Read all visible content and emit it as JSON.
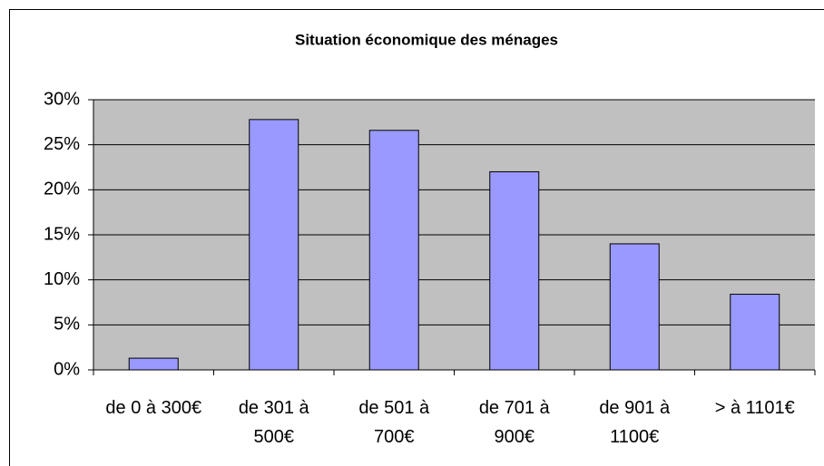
{
  "chart_data": {
    "type": "bar",
    "title": "Situation économique des ménages",
    "categories": [
      "de 0 à 300€",
      "de 301 à 500€",
      "de 501 à 700€",
      "de 701 à 900€",
      "de 901 à 1100€",
      "> à 1101€"
    ],
    "values": [
      1.3,
      27.8,
      26.6,
      22,
      14,
      8.4
    ],
    "color": "#9999ff",
    "plot_color": "#c0c0c0",
    "ylim": [
      0,
      30
    ],
    "yticks": [
      {
        "value": 0,
        "label": "0%"
      },
      {
        "value": 5,
        "label": "5%"
      },
      {
        "value": 10,
        "label": "10%"
      },
      {
        "value": 15,
        "label": "15%"
      },
      {
        "value": 20,
        "label": "20%"
      },
      {
        "value": 25,
        "label": "25%"
      },
      {
        "value": 30,
        "label": "30%"
      }
    ],
    "grid": true
  }
}
